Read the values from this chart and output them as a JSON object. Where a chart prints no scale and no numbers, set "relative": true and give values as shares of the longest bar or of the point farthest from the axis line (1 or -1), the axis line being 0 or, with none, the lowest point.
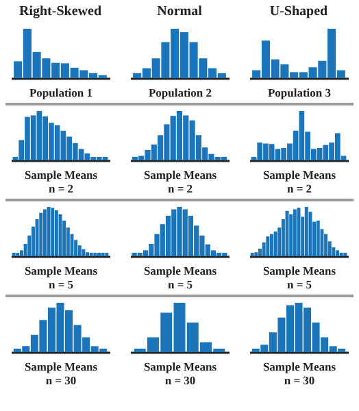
{
  "chart_data": [
    {
      "type": "bar",
      "relative": true,
      "tick_labels": false,
      "title": "Right-Skewed",
      "xlabel": "Population 1",
      "color": "#1b75bb",
      "categories": [
        null,
        null,
        null,
        null,
        null,
        null,
        null,
        null,
        null,
        null
      ],
      "values": [
        0.34,
        1,
        0.53,
        0.4,
        0.31,
        0.3,
        0.21,
        0.16,
        0.1,
        0.06
      ]
    },
    {
      "type": "bar",
      "relative": true,
      "tick_labels": false,
      "title": "Normal",
      "xlabel": "Population 2",
      "color": "#1b75bb",
      "categories": [
        null,
        null,
        null,
        null,
        null,
        null,
        null,
        null,
        null,
        null
      ],
      "values": [
        0.1,
        0.2,
        0.4,
        0.73,
        1,
        0.93,
        0.73,
        0.4,
        0.2,
        0.1
      ]
    },
    {
      "type": "bar",
      "relative": true,
      "tick_labels": false,
      "title": "U-Shaped",
      "xlabel": "Population 3",
      "color": "#1b75bb",
      "categories": [
        null,
        null,
        null,
        null,
        null,
        null,
        null,
        null,
        null,
        null
      ],
      "values": [
        0.16,
        0.76,
        0.38,
        0.28,
        0.12,
        0.12,
        0.22,
        0.35,
        1,
        0.16
      ]
    },
    {
      "type": "bar",
      "relative": true,
      "tick_labels": false,
      "xlabel": "Sample Means",
      "annotations": [
        "n = 2"
      ],
      "color": "#1b75bb",
      "categories": [
        null,
        null,
        null,
        null,
        null,
        null,
        null,
        null,
        null,
        null,
        null,
        null,
        null,
        null,
        null,
        null
      ],
      "values": [
        0.07,
        0.41,
        0.88,
        0.91,
        1,
        0.89,
        0.76,
        0.71,
        0.6,
        0.48,
        0.35,
        0.23,
        0.14,
        0.07,
        0.07,
        0.07
      ]
    },
    {
      "type": "bar",
      "relative": true,
      "tick_labels": false,
      "xlabel": "Sample Means",
      "annotations": [
        "n = 2"
      ],
      "color": "#1b75bb",
      "categories": [
        null,
        null,
        null,
        null,
        null,
        null,
        null,
        null,
        null,
        null,
        null,
        null,
        null,
        null,
        null
      ],
      "values": [
        0.07,
        0.09,
        0.21,
        0.32,
        0.51,
        0.73,
        0.9,
        1,
        0.91,
        0.81,
        0.51,
        0.26,
        0.13,
        0.07,
        0.07
      ]
    },
    {
      "type": "bar",
      "relative": true,
      "tick_labels": false,
      "xlabel": "Sample Means",
      "annotations": [
        "n = 2"
      ],
      "color": "#1b75bb",
      "categories": [
        null,
        null,
        null,
        null,
        null,
        null,
        null,
        null,
        null,
        null,
        null,
        null,
        null,
        null,
        null,
        null
      ],
      "values": [
        0.07,
        0.36,
        0.34,
        0.33,
        0.23,
        0.25,
        0.34,
        0.6,
        1,
        0.58,
        0.23,
        0.25,
        0.31,
        0.36,
        0.55,
        0.09
      ]
    },
    {
      "type": "bar",
      "relative": true,
      "tick_labels": false,
      "xlabel": "Sample Means",
      "annotations": [
        "n = 5"
      ],
      "color": "#1b75bb",
      "categories": [
        null,
        null,
        null,
        null,
        null,
        null,
        null,
        null,
        null,
        null,
        null,
        null,
        null,
        null,
        null,
        null,
        null,
        null,
        null,
        null,
        null,
        null,
        null,
        null,
        null
      ],
      "values": [
        0.07,
        0.07,
        0.12,
        0.25,
        0.42,
        0.6,
        0.75,
        0.88,
        0.95,
        1,
        0.98,
        0.93,
        0.85,
        0.72,
        0.58,
        0.45,
        0.33,
        0.22,
        0.14,
        0.08,
        0.07,
        0.07,
        0.07,
        0.07,
        0.07
      ]
    },
    {
      "type": "bar",
      "relative": true,
      "tick_labels": false,
      "xlabel": "Sample Means",
      "annotations": [
        "n = 5"
      ],
      "color": "#1b75bb",
      "categories": [
        null,
        null,
        null,
        null,
        null,
        null,
        null,
        null,
        null,
        null,
        null,
        null,
        null,
        null,
        null,
        null,
        null
      ],
      "values": [
        0.07,
        0.07,
        0.12,
        0.25,
        0.45,
        0.65,
        0.82,
        0.95,
        1,
        0.95,
        0.82,
        0.62,
        0.42,
        0.24,
        0.12,
        0.07,
        0.07
      ]
    },
    {
      "type": "bar",
      "relative": true,
      "tick_labels": false,
      "xlabel": "Sample Means",
      "annotations": [
        "n = 5"
      ],
      "color": "#1b75bb",
      "categories": [
        null,
        null,
        null,
        null,
        null,
        null,
        null,
        null,
        null,
        null,
        null,
        null,
        null,
        null,
        null,
        null,
        null,
        null,
        null,
        null,
        null,
        null,
        null,
        null,
        null
      ],
      "values": [
        0.07,
        0.08,
        0.15,
        0.28,
        0.4,
        0.45,
        0.5,
        0.58,
        0.75,
        0.92,
        0.85,
        0.95,
        0.98,
        0.8,
        1,
        0.9,
        0.7,
        0.72,
        0.55,
        0.45,
        0.3,
        0.18,
        0.12,
        0.07,
        0.07
      ]
    },
    {
      "type": "bar",
      "relative": true,
      "tick_labels": false,
      "xlabel": "Sample Means",
      "annotations": [
        "n = 30"
      ],
      "color": "#1b75bb",
      "categories": [
        null,
        null,
        null,
        null,
        null,
        null,
        null,
        null,
        null,
        null,
        null
      ],
      "values": [
        0.07,
        0.12,
        0.35,
        0.65,
        0.9,
        1,
        0.85,
        0.55,
        0.3,
        0.12,
        0.07
      ]
    },
    {
      "type": "bar",
      "relative": true,
      "tick_labels": false,
      "xlabel": "Sample Means",
      "annotations": [
        "n = 30"
      ],
      "color": "#1b75bb",
      "categories": [
        null,
        null,
        null,
        null,
        null,
        null,
        null
      ],
      "values": [
        0.07,
        0.3,
        0.8,
        1,
        0.6,
        0.2,
        0.07
      ]
    },
    {
      "type": "bar",
      "relative": true,
      "tick_labels": false,
      "xlabel": "Sample Means",
      "annotations": [
        "n = 30"
      ],
      "color": "#1b75bb",
      "categories": [
        null,
        null,
        null,
        null,
        null,
        null,
        null,
        null,
        null,
        null,
        null
      ],
      "values": [
        0.07,
        0.15,
        0.4,
        0.7,
        0.95,
        1,
        0.9,
        0.6,
        0.3,
        0.12,
        0.07
      ]
    }
  ]
}
